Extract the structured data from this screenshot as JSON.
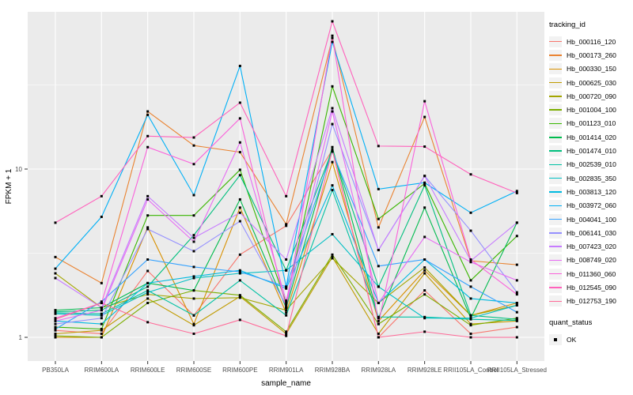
{
  "colors": {
    "panel_bg": "#EBEBEB",
    "grid": "#FFFFFF",
    "tick": "#333333",
    "tick_label": "#4D4D4D",
    "axis_title": "#000000",
    "marker": "#000000",
    "legend_key_bg": "#F2F2F2"
  },
  "chart_data": {
    "type": "line",
    "title": "",
    "xlabel": "sample_name",
    "ylabel": "FPKM + 1",
    "yscale": "log10",
    "ylim": [
      1,
      86
    ],
    "grid": "on",
    "legend_position": "right",
    "legend_title": "tracking_id",
    "legend2_title": "quant_status",
    "legend2_items": [
      {
        "label": "OK",
        "shape": "square"
      }
    ],
    "y_tick_labels": [
      "1",
      "10"
    ],
    "y_tick_values": [
      1,
      10
    ],
    "marker": {
      "shape": "square",
      "color": "#000000",
      "size": 3
    },
    "x_categories": [
      "PB350LA",
      "RRIM600LA",
      "RRIM600LE",
      "RRIM600SE",
      "RRIM600PE",
      "RRIM901LA",
      "RRIM928BA",
      "RRIM928LA",
      "RRIM928LE",
      "RRII105LA_Control",
      "RRII105LA_Stressed"
    ],
    "series": [
      {
        "name": "Hb_000116_120",
        "color": "#F8766D",
        "values": [
          1.1,
          1.05,
          2.48,
          1.35,
          3.1,
          4.6,
          13.0,
          1.0,
          1.9,
          1.05,
          1.15
        ]
      },
      {
        "name": "Hb_000173_260",
        "color": "#EA8331",
        "values": [
          3.0,
          2.1,
          22.0,
          13.8,
          12.6,
          4.7,
          60.0,
          4.5,
          20.4,
          2.85,
          2.7
        ]
      },
      {
        "name": "Hb_000330_150",
        "color": "#D89000",
        "values": [
          1.0,
          1.0,
          4.5,
          1.2,
          5.9,
          1.4,
          11.0,
          1.25,
          2.5,
          1.35,
          1.6
        ]
      },
      {
        "name": "Hb_000625_030",
        "color": "#C09B00",
        "values": [
          1.05,
          1.1,
          1.7,
          1.18,
          1.75,
          1.05,
          3.0,
          1.05,
          2.4,
          1.2,
          1.25
        ]
      },
      {
        "name": "Hb_000720_090",
        "color": "#A3A500",
        "values": [
          2.4,
          1.5,
          1.8,
          1.7,
          1.72,
          1.45,
          2.95,
          1.6,
          2.6,
          1.35,
          1.55
        ]
      },
      {
        "name": "Hb_001004_100",
        "color": "#7CAE00",
        "values": [
          1.02,
          1.0,
          1.6,
          1.9,
          1.78,
          1.08,
          3.1,
          1.2,
          1.8,
          1.18,
          1.3
        ]
      },
      {
        "name": "Hb_001123_010",
        "color": "#39B600",
        "values": [
          1.15,
          1.12,
          5.3,
          5.3,
          9.9,
          1.6,
          31.0,
          5.05,
          8.2,
          2.18,
          4.0
        ]
      },
      {
        "name": "Hb_001414_020",
        "color": "#00BB4E",
        "values": [
          1.45,
          1.5,
          2.1,
          1.9,
          6.6,
          1.5,
          13.5,
          1.3,
          5.9,
          1.3,
          4.8
        ]
      },
      {
        "name": "Hb_001474_010",
        "color": "#00BF7D",
        "values": [
          1.42,
          1.45,
          2.0,
          4.05,
          9.2,
          2.5,
          13.0,
          2.0,
          8.0,
          1.35,
          1.28
        ]
      },
      {
        "name": "Hb_002539_010",
        "color": "#00C1A3",
        "values": [
          1.4,
          1.38,
          1.9,
          1.35,
          2.18,
          1.35,
          7.5,
          1.32,
          1.32,
          1.28,
          1.26
        ]
      },
      {
        "name": "Hb_002835_350",
        "color": "#00BFC4",
        "values": [
          1.38,
          1.35,
          1.85,
          2.25,
          2.4,
          2.5,
          4.1,
          2.0,
          1.3,
          1.3,
          1.55
        ]
      },
      {
        "name": "Hb_003813_120",
        "color": "#00BAE0",
        "values": [
          1.25,
          1.2,
          2.1,
          2.3,
          2.5,
          1.95,
          8.0,
          1.6,
          2.9,
          1.7,
          1.6
        ]
      },
      {
        "name": "Hb_003972_060",
        "color": "#00B0F6",
        "values": [
          2.56,
          5.2,
          21.0,
          7.0,
          41.0,
          2.0,
          57.0,
          7.6,
          8.3,
          5.5,
          7.4
        ]
      },
      {
        "name": "Hb_004041_100",
        "color": "#35A2FF",
        "values": [
          1.12,
          1.63,
          2.9,
          2.62,
          2.45,
          2.0,
          12.7,
          2.65,
          2.9,
          2.0,
          1.41
        ]
      },
      {
        "name": "Hb_006141_030",
        "color": "#9590FF",
        "values": [
          1.2,
          1.3,
          4.4,
          3.25,
          4.9,
          1.55,
          18.5,
          3.3,
          9.1,
          4.3,
          1.85
        ]
      },
      {
        "name": "Hb_007423_020",
        "color": "#C77CFF",
        "values": [
          2.25,
          1.5,
          6.9,
          3.9,
          5.5,
          2.9,
          23.0,
          3.3,
          9.1,
          2.85,
          4.8
        ]
      },
      {
        "name": "Hb_008749_020",
        "color": "#E76BF3",
        "values": [
          1.25,
          1.45,
          6.6,
          3.7,
          14.4,
          1.65,
          22.0,
          1.6,
          3.95,
          2.8,
          2.18
        ]
      },
      {
        "name": "Hb_011360_060",
        "color": "#FA62DB",
        "values": [
          1.3,
          1.6,
          13.5,
          10.7,
          20.0,
          1.5,
          62.0,
          1.2,
          25.3,
          2.9,
          1.8
        ]
      },
      {
        "name": "Hb_012545_090",
        "color": "#FF62BC",
        "values": [
          4.8,
          6.9,
          15.7,
          15.4,
          24.8,
          6.9,
          75.5,
          13.7,
          13.6,
          9.3,
          7.2
        ]
      },
      {
        "name": "Hb_012753_190",
        "color": "#FF6A98",
        "values": [
          1.28,
          1.6,
          1.23,
          1.05,
          1.27,
          1.02,
          13.0,
          1.0,
          1.08,
          1.0,
          1.0
        ]
      }
    ]
  }
}
